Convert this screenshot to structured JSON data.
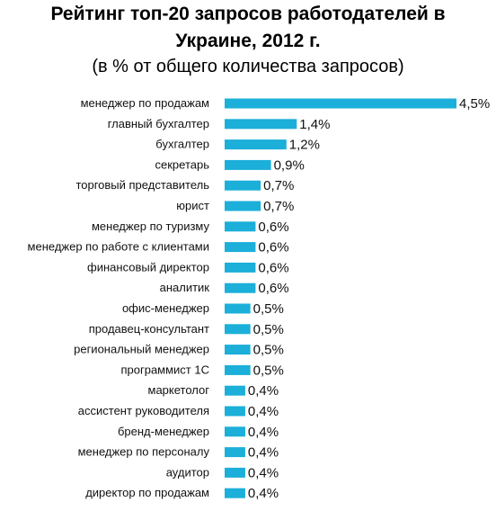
{
  "title_line1": "Рейтинг топ-20 запросов работодателей в",
  "title_line2": "Украине, 2012 г.",
  "subtitle": "(в % от общего количества запросов)",
  "colors": {
    "bar": "#1bafd9",
    "text": "#111111"
  },
  "chart_data": {
    "type": "bar",
    "orientation": "horizontal",
    "title": "Рейтинг топ-20 запросов работодателей в Украине, 2012 г.",
    "subtitle": "(в % от общего количества запросов)",
    "xlabel": "",
    "ylabel": "",
    "grid": false,
    "legend": "none",
    "xlim": [
      0,
      4.5
    ],
    "categories": [
      "менеджер по продажам",
      "главный бухгалтер",
      "бухгалтер",
      "секретарь",
      "торговый представитель",
      "юрист",
      "менеджер по туризму",
      "менеджер по работе с клиентами",
      "финансовый директор",
      "аналитик",
      "офис-менеджер",
      "продавец-консультант",
      "региональный менеджер",
      "программист 1С",
      "маркетолог",
      "ассистент руководителя",
      "бренд-менеджер",
      "менеджер по персоналу",
      "аудитор",
      "директор по продажам"
    ],
    "values": [
      4.5,
      1.4,
      1.2,
      0.9,
      0.7,
      0.7,
      0.6,
      0.6,
      0.6,
      0.6,
      0.5,
      0.5,
      0.5,
      0.5,
      0.4,
      0.4,
      0.4,
      0.4,
      0.4,
      0.4
    ],
    "value_labels": [
      "4,5%",
      "1,4%",
      "1,2%",
      "0,9%",
      "0,7%",
      "0,7%",
      "0,6%",
      "0,6%",
      "0,6%",
      "0,6%",
      "0,5%",
      "0,5%",
      "0,5%",
      "0,5%",
      "0,4%",
      "0,4%",
      "0,4%",
      "0,4%",
      "0,4%",
      "0,4%"
    ]
  }
}
